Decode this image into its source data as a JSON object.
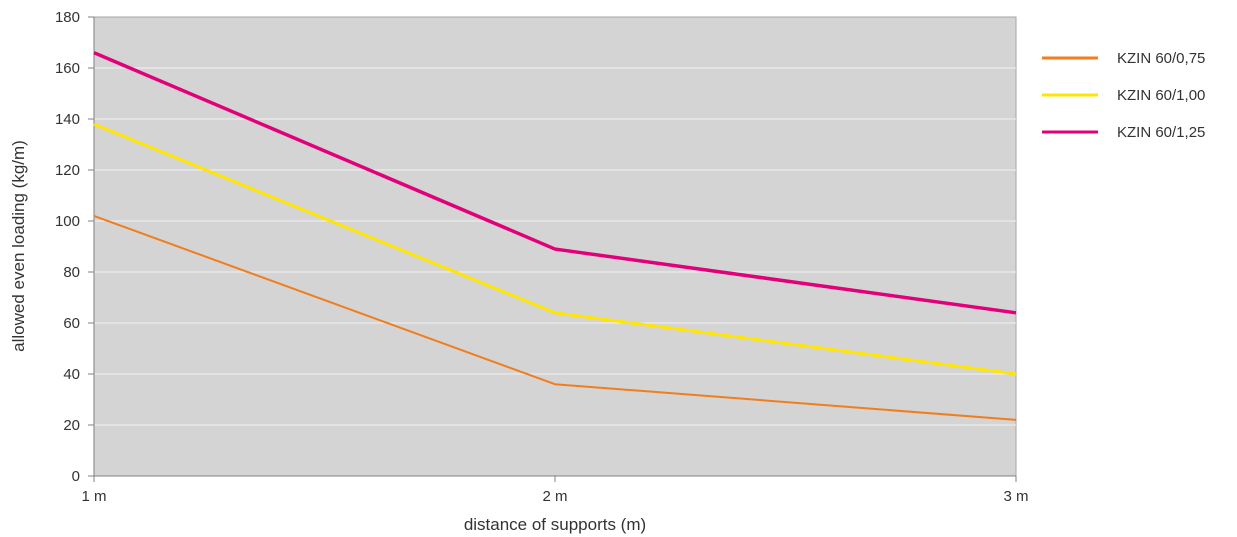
{
  "chart_data": {
    "type": "line",
    "title": "",
    "xlabel": "distance of supports (m)",
    "ylabel": "allowed even loading (kg/m)",
    "categories": [
      "1 m",
      "2 m",
      "3 m"
    ],
    "ylim": [
      0,
      180
    ],
    "yticks": [
      0,
      20,
      40,
      60,
      80,
      100,
      120,
      140,
      160,
      180
    ],
    "grid": true,
    "legend_position": "right",
    "background_color": "#d4d4d4",
    "grid_color": "#f2f2f2",
    "series": [
      {
        "name": "KZIN 60/0,75",
        "values": [
          102,
          36,
          22
        ],
        "color": "#f07d1e"
      },
      {
        "name": "KZIN 60/1,00",
        "values": [
          138,
          64,
          40
        ],
        "color": "#ffe600"
      },
      {
        "name": "KZIN 60/1,25",
        "values": [
          166,
          89,
          64
        ],
        "color": "#e2007a"
      }
    ]
  }
}
